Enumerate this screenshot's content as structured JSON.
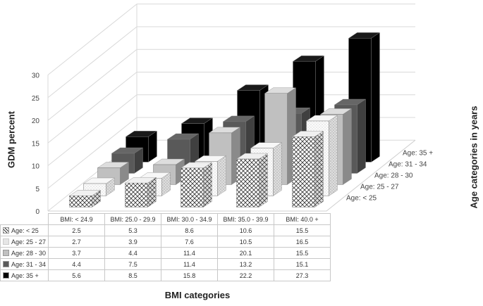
{
  "chart_data": {
    "type": "bar",
    "subtype": "3d-clustered-column-with-data-table",
    "ylabel": "GDM percent",
    "xlabel": "BMI categories",
    "zlabel": "Age categories in years",
    "ylim": [
      0,
      30
    ],
    "yticks": [
      "0",
      "5",
      "10",
      "15",
      "20",
      "25",
      "30"
    ],
    "grid": true,
    "categories": [
      "BMI: < 24.9",
      "BMI: 25.0 - 29.9",
      "BMI: 30.0 - 34.9",
      "BMI: 35.0 - 39.9",
      "BMI: 40.0 +"
    ],
    "series": [
      {
        "name": "Age: < 25",
        "pattern": "crosshatch",
        "color": "#ffffff",
        "values": [
          2.5,
          5.3,
          8.6,
          10.6,
          15.5
        ]
      },
      {
        "name": "Age: 25 - 27",
        "pattern": "stipple",
        "color": "#f2f2f2",
        "values": [
          2.7,
          3.9,
          7.6,
          10.5,
          16.5
        ]
      },
      {
        "name": "Age: 28 - 30",
        "pattern": "solid",
        "color": "#c0c0c0",
        "values": [
          3.7,
          4.4,
          11.4,
          20.1,
          15.5
        ]
      },
      {
        "name": "Age: 31 - 34",
        "pattern": "solid",
        "color": "#595959",
        "values": [
          4.4,
          7.5,
          11.4,
          13.2,
          15.1
        ]
      },
      {
        "name": "Age: 35 +",
        "pattern": "solid",
        "color": "#000000",
        "values": [
          5.6,
          8.5,
          15.8,
          22.2,
          27.3
        ]
      }
    ]
  }
}
